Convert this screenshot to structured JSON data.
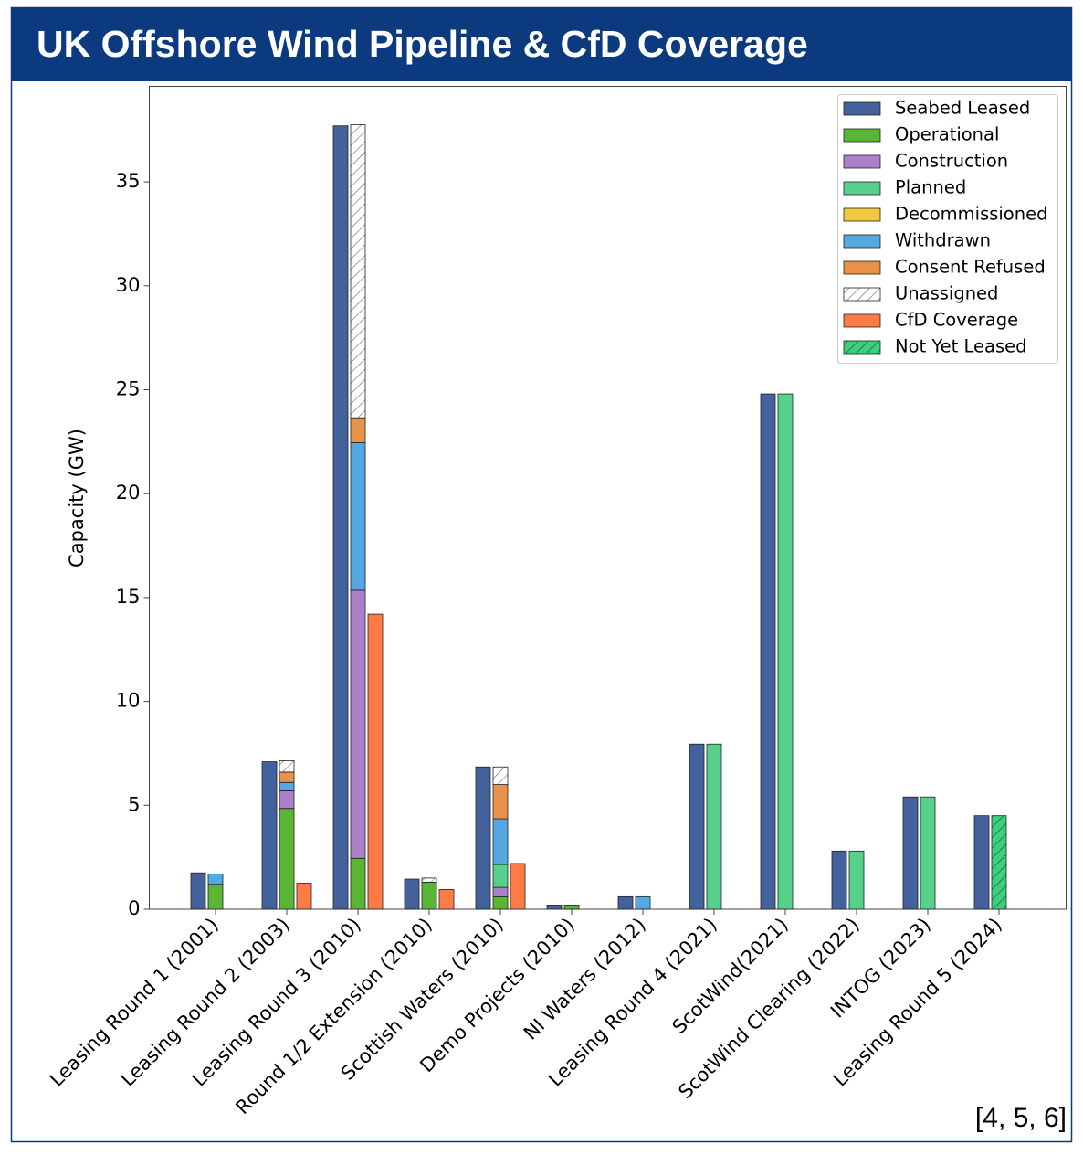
{
  "chart_data": {
    "type": "bar",
    "title": "UK Offshore Wind Pipeline & CfD Coverage",
    "note": "[4, 5, 6]",
    "ylabel": "Capacity (GW)",
    "categories": [
      "Leasing Round 1 (2001)",
      "Leasing Round 2 (2003)",
      "Leasing Round 3 (2010)",
      "Round 1/2 Extension (2010)",
      "Scottish  Waters (2010)",
      "Demo Projects (2010)",
      "NI Waters (2012)",
      "Leasing Round 4 (2021)",
      "ScotWind(2021)",
      "ScotWind Clearing (2022)",
      "INTOG (2023)",
      "Leasing Round 5 (2024)"
    ],
    "ylim": [
      0,
      39.6
    ],
    "yticks": [
      0,
      5,
      10,
      15,
      20,
      25,
      30,
      35
    ],
    "legend": "upper right",
    "series": [
      {
        "name": "Seabed Leased",
        "color": "#43619a",
        "stack": 0,
        "values": [
          1.75,
          7.1,
          37.7,
          1.45,
          6.85,
          0.2,
          0.6,
          7.95,
          24.8,
          2.8,
          5.4,
          4.5
        ]
      },
      {
        "name": "Operational",
        "color": "#5ab535",
        "stack": 1,
        "values": [
          1.2,
          4.85,
          2.45,
          1.3,
          0.6,
          0.2,
          null,
          null,
          null,
          null,
          null,
          null
        ]
      },
      {
        "name": "Construction",
        "color": "#ad7fc9",
        "stack": 1,
        "values": [
          null,
          0.85,
          12.9,
          null,
          0.45,
          null,
          null,
          null,
          null,
          null,
          null,
          null
        ]
      },
      {
        "name": "Planned",
        "color": "#55d18c",
        "stack": 1,
        "values": [
          null,
          null,
          null,
          null,
          1.1,
          null,
          null,
          7.95,
          24.8,
          2.8,
          5.4,
          null
        ]
      },
      {
        "name": "Decommissioned",
        "color": "#f2c83c",
        "stack": 1,
        "values": [
          null,
          null,
          null,
          null,
          null,
          null,
          null,
          null,
          null,
          null,
          null,
          null
        ]
      },
      {
        "name": "Withdrawn",
        "color": "#56a8e2",
        "stack": 1,
        "values": [
          0.5,
          0.4,
          7.1,
          null,
          2.2,
          null,
          0.6,
          null,
          null,
          null,
          null,
          null
        ]
      },
      {
        "name": "Consent Refused",
        "color": "#e8914a",
        "stack": 1,
        "values": [
          null,
          0.5,
          1.2,
          null,
          1.65,
          null,
          null,
          null,
          null,
          null,
          null,
          null
        ]
      },
      {
        "name": "Unassigned",
        "color": "#ffffff",
        "hatch": "///",
        "stack": 1,
        "values": [
          null,
          0.55,
          14.1,
          0.2,
          0.85,
          null,
          null,
          null,
          null,
          null,
          null,
          null
        ]
      },
      {
        "name": "CfD Coverage",
        "color": "#ff7b45",
        "stack": 2,
        "values": [
          null,
          1.25,
          14.2,
          0.95,
          2.2,
          null,
          null,
          null,
          null,
          null,
          null,
          null
        ]
      },
      {
        "name": "Not Yet Leased",
        "color": "#3ccf7c",
        "hatch": "///",
        "stack": 1,
        "values": [
          null,
          null,
          null,
          null,
          null,
          null,
          null,
          null,
          null,
          null,
          null,
          4.5
        ]
      }
    ]
  }
}
